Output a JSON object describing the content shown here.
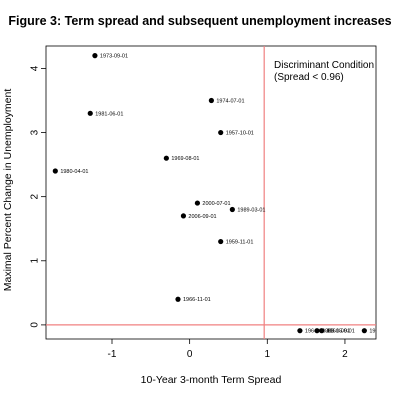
{
  "chart_data": {
    "type": "scatter",
    "title": "Figure 3: Term spread and subsequent unemployment increases",
    "xlabel": "10-Year 3-month Term Spread",
    "ylabel": "Maximal Percent Change in Unemployment",
    "xlim": [
      -1.85,
      2.4
    ],
    "ylim": [
      -0.22,
      4.35
    ],
    "xticks": [
      -1,
      0,
      1,
      2
    ],
    "yticks": [
      0,
      1,
      2,
      3,
      4
    ],
    "xtick_labels": [
      "-1",
      "0",
      "1",
      "2"
    ],
    "ytick_labels": [
      "0",
      "1",
      "2",
      "3",
      "4"
    ],
    "reference_lines": {
      "vertical_x": 0.96,
      "horizontal_y": 0,
      "color": "#f08080"
    },
    "annotation": [
      "Discriminant Condition",
      "(Spread < 0.96)"
    ],
    "points": [
      {
        "x": -1.22,
        "y": 4.2,
        "label": "1973-09-01"
      },
      {
        "x": 0.28,
        "y": 3.5,
        "label": "1974-07-01"
      },
      {
        "x": -1.28,
        "y": 3.3,
        "label": "1981-06-01"
      },
      {
        "x": 0.4,
        "y": 3.0,
        "label": "1957-10-01"
      },
      {
        "x": -0.3,
        "y": 2.6,
        "label": "1969-08-01"
      },
      {
        "x": -1.73,
        "y": 2.4,
        "label": "1980-04-01"
      },
      {
        "x": 0.1,
        "y": 1.9,
        "label": "2000-07-01"
      },
      {
        "x": 0.55,
        "y": 1.8,
        "label": "1989-03-01"
      },
      {
        "x": -0.08,
        "y": 1.7,
        "label": "2006-09-01"
      },
      {
        "x": 0.4,
        "y": 1.3,
        "label": "1959-11-01"
      },
      {
        "x": -0.15,
        "y": 0.4,
        "label": "1966-11-01"
      },
      {
        "x": 1.42,
        "y": -0.09,
        "label": "1964-09-01"
      },
      {
        "x": 1.64,
        "y": -0.09,
        "label": "1968-05-01"
      },
      {
        "x": 1.7,
        "y": -0.09,
        "label": "1961-09-01"
      },
      {
        "x": 2.25,
        "y": -0.09,
        "label": "19"
      }
    ]
  }
}
